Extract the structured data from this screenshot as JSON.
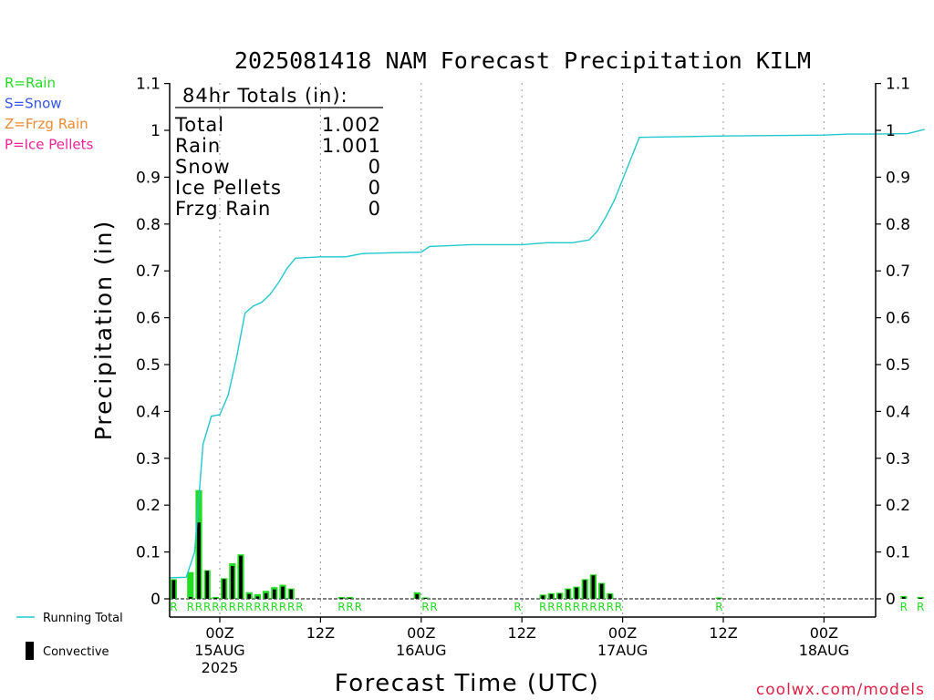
{
  "chart_data": {
    "type": "bar",
    "title": "2025081418 NAM Forecast Precipitation KILM",
    "xlabel": "Forecast Time (UTC)",
    "ylabel": "Precipitation (in)",
    "ylim": [
      0,
      1.1
    ],
    "yticks": [
      "0",
      "0.1",
      "0.2",
      "0.3",
      "0.4",
      "0.5",
      "0.6",
      "0.7",
      "0.8",
      "0.9",
      "1",
      "1.1"
    ],
    "xlim": [
      -6,
      84
    ],
    "xticks": [
      {
        "hour": 0,
        "lines": [
          "00Z",
          "15AUG",
          "2025"
        ]
      },
      {
        "hour": 12,
        "lines": [
          "12Z"
        ]
      },
      {
        "hour": 24,
        "lines": [
          "00Z",
          "16AUG"
        ]
      },
      {
        "hour": 36,
        "lines": [
          "12Z"
        ]
      },
      {
        "hour": 48,
        "lines": [
          "00Z",
          "17AUG"
        ]
      },
      {
        "hour": 60,
        "lines": [
          "12Z"
        ]
      },
      {
        "hour": 72,
        "lines": [
          "00Z",
          "18AUG"
        ]
      }
    ],
    "legend_types": [
      {
        "label": "R=Rain",
        "color": "#22dd22"
      },
      {
        "label": "S=Snow",
        "color": "#3355ee"
      },
      {
        "label": "Z=Frzg Rain",
        "color": "#f08a30"
      },
      {
        "label": "P=Ice Pellets",
        "color": "#ee2299"
      }
    ],
    "legend_series": [
      {
        "label": "Running Total",
        "color": "#22c8d0"
      },
      {
        "label": "Convective",
        "color": "#000000"
      }
    ],
    "totals": {
      "heading": "84hr Totals (in):",
      "rows": [
        {
          "label": "Total",
          "value": "1.002"
        },
        {
          "label": "Rain",
          "value": "1.001"
        },
        {
          "label": "Snow",
          "value": "0"
        },
        {
          "label": "Ice Pellets",
          "value": "0"
        },
        {
          "label": "Frzg Rain",
          "value": "0"
        }
      ]
    },
    "bar_color": "#22dd22",
    "convective_color": "#000000",
    "line_color": "#22c8d0",
    "bars": [
      {
        "hour": -5,
        "total": 0.042,
        "conv": 0.04
      },
      {
        "hour": -3,
        "total": 0.057,
        "conv": 0.004
      },
      {
        "hour": -2,
        "total": 0.232,
        "conv": 0.163
      },
      {
        "hour": -1,
        "total": 0.061,
        "conv": 0.06
      },
      {
        "hour": 0,
        "total": 0.004,
        "conv": 0.002
      },
      {
        "hour": 1,
        "total": 0.044,
        "conv": 0.042
      },
      {
        "hour": 2,
        "total": 0.076,
        "conv": 0.07
      },
      {
        "hour": 3,
        "total": 0.095,
        "conv": 0.092
      },
      {
        "hour": 4,
        "total": 0.014,
        "conv": 0.01
      },
      {
        "hour": 5,
        "total": 0.01,
        "conv": 0.005
      },
      {
        "hour": 6,
        "total": 0.017,
        "conv": 0.012
      },
      {
        "hour": 7,
        "total": 0.025,
        "conv": 0.02
      },
      {
        "hour": 8,
        "total": 0.03,
        "conv": 0.026
      },
      {
        "hour": 9,
        "total": 0.022,
        "conv": 0.02
      },
      {
        "hour": 15,
        "total": 0.004,
        "conv": 0.002
      },
      {
        "hour": 16,
        "total": 0.004,
        "conv": 0.002
      },
      {
        "hour": 24,
        "total": 0.014,
        "conv": 0.01
      },
      {
        "hour": 25,
        "total": 0.003,
        "conv": 0.002
      },
      {
        "hour": 39,
        "total": 0.009,
        "conv": 0.007
      },
      {
        "hour": 40,
        "total": 0.012,
        "conv": 0.01
      },
      {
        "hour": 41,
        "total": 0.013,
        "conv": 0.011
      },
      {
        "hour": 42,
        "total": 0.022,
        "conv": 0.02
      },
      {
        "hour": 43,
        "total": 0.026,
        "conv": 0.024
      },
      {
        "hour": 44,
        "total": 0.042,
        "conv": 0.04
      },
      {
        "hour": 45,
        "total": 0.052,
        "conv": 0.05
      },
      {
        "hour": 46,
        "total": 0.034,
        "conv": 0.032
      },
      {
        "hour": 47,
        "total": 0.012,
        "conv": 0.01
      },
      {
        "hour": 60,
        "total": 0.003,
        "conv": 0.001
      },
      {
        "hour": 82,
        "total": 0.006,
        "conv": 0.004
      },
      {
        "hour": 84,
        "total": 0.004,
        "conv": 0.002
      }
    ],
    "running_total": {
      "x": [
        -6,
        -4,
        -3,
        -2,
        -1,
        0,
        1,
        2,
        3,
        4,
        5,
        6,
        7,
        8,
        9,
        12,
        15,
        17,
        21,
        24,
        25,
        30,
        36,
        39,
        42,
        44,
        45,
        46,
        47,
        48,
        50,
        60,
        72,
        75,
        76,
        77,
        78,
        82,
        84
      ],
      "y": [
        0.045,
        0.046,
        0.1,
        0.33,
        0.39,
        0.393,
        0.435,
        0.515,
        0.61,
        0.625,
        0.633,
        0.65,
        0.675,
        0.705,
        0.727,
        0.73,
        0.73,
        0.737,
        0.739,
        0.74,
        0.752,
        0.756,
        0.756,
        0.76,
        0.76,
        0.766,
        0.785,
        0.815,
        0.85,
        0.895,
        0.985,
        0.988,
        0.99,
        0.992,
        0.992,
        0.992,
        0.992,
        0.993,
        1.002
      ]
    },
    "ptype_markers": {
      "hours": [
        -5,
        -3,
        -2,
        -1,
        0,
        1,
        2,
        3,
        4,
        5,
        6,
        7,
        8,
        9,
        10,
        15,
        16,
        17,
        25,
        26,
        36,
        39,
        40,
        41,
        42,
        43,
        44,
        45,
        46,
        47,
        48,
        60,
        82,
        84
      ],
      "codes": [
        "R",
        "R",
        "R",
        "R",
        "R",
        "R",
        "R",
        "R",
        "R",
        "R",
        "R",
        "R",
        "R",
        "R",
        "R",
        "R",
        "R",
        "R",
        "R",
        "R",
        "R",
        "R",
        "R",
        "R",
        "R",
        "R",
        "R",
        "R",
        "R",
        "R",
        "R",
        "R",
        "R",
        "R"
      ]
    },
    "credit": "coolwx.com/models"
  }
}
